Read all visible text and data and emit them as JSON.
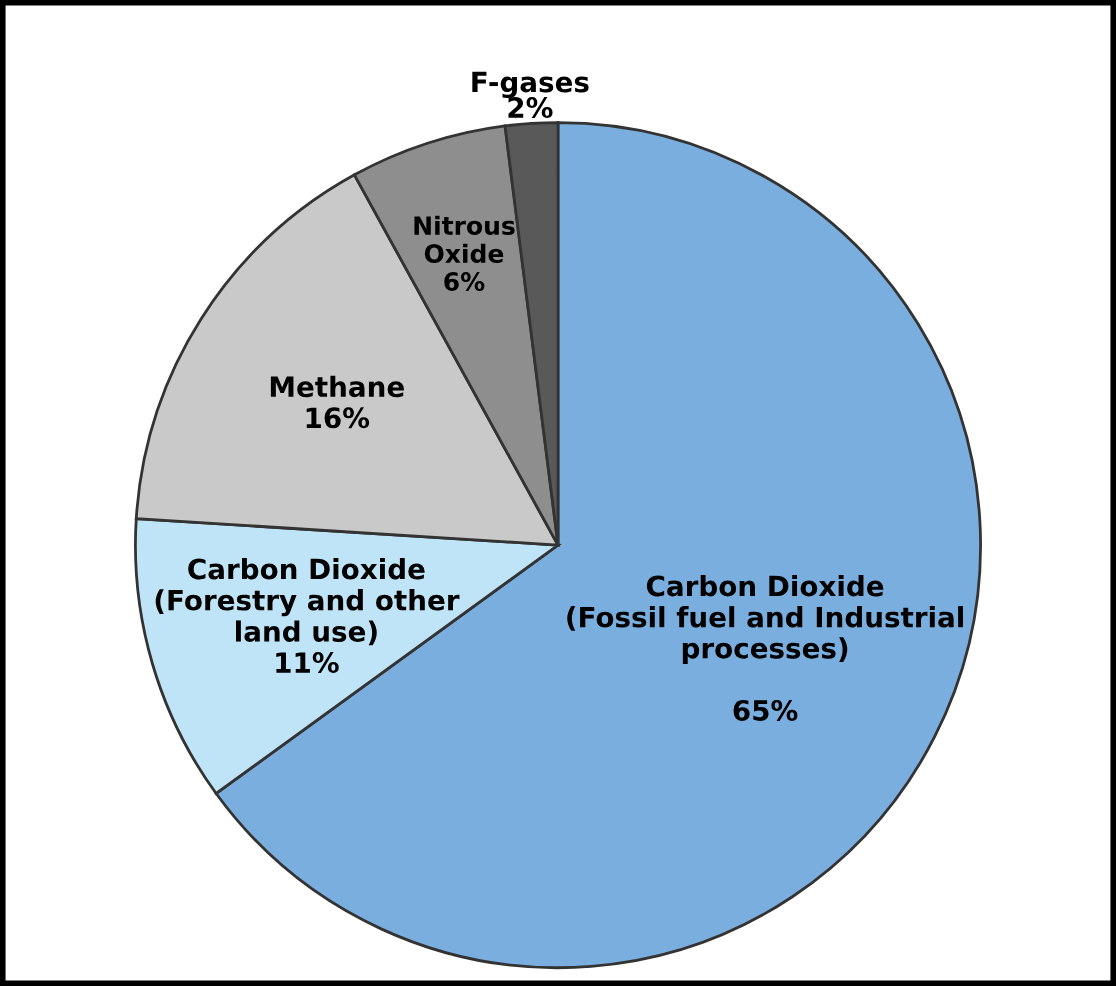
{
  "chart_data": {
    "type": "pie",
    "categories": [
      "Carbon Dioxide\n(Fossil fuel and Industrial\nprocesses)",
      "Carbon Dioxide\n(Forestry and other\nland use)",
      "Methane",
      "Nitrous\nOxide",
      "F-gases"
    ],
    "values": [
      65,
      11,
      16,
      6,
      2
    ],
    "colors": [
      "#7aaedf",
      "#bfe4f7",
      "#c9c9c9",
      "#8e8e8e",
      "#595959"
    ],
    "value_labels": [
      "65%",
      "11%",
      "16%",
      "6%",
      "2%"
    ]
  }
}
